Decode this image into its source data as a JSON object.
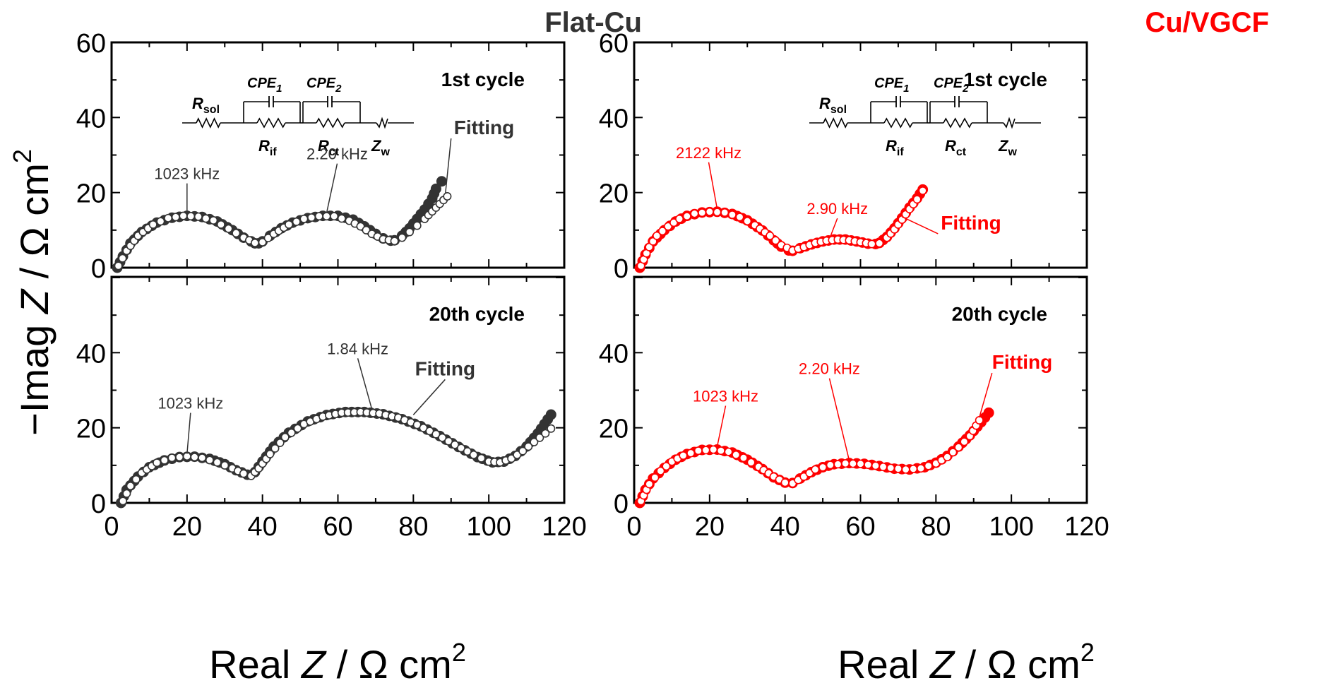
{
  "figure": {
    "ylabel_prefix": "−Imag ",
    "ylabel_var": "Z",
    "ylabel_unit": " / Ω cm",
    "ylabel_sup": "2",
    "xlabel_prefix": "Real ",
    "xlabel_var": "Z",
    "xlabel_unit": " / Ω cm",
    "xlabel_sup": "2",
    "panel_titles": [
      "Flat-Cu",
      "Cu/VGCF"
    ],
    "colors": {
      "flat": "#333333",
      "vgcf": "#ff0000",
      "axis": "#000000"
    }
  },
  "circuit": {
    "labels": [
      "R",
      "sol",
      "CPE",
      "1",
      "CPE",
      "2",
      "R",
      "if",
      "R",
      "ct",
      "Z",
      "w"
    ]
  },
  "chart_data": [
    {
      "type": "scatter",
      "panel": "Flat-Cu",
      "subtitle": "1st cycle",
      "xlim": [
        0,
        120
      ],
      "ylim": [
        0,
        60
      ],
      "xticks": [
        0,
        20,
        40,
        60,
        80,
        100,
        120
      ],
      "yticks": [
        0,
        20,
        40,
        60
      ],
      "color": "#333333",
      "series": [
        {
          "marker": "filled",
          "x": [
            1.5,
            3,
            5,
            8,
            12,
            16,
            20,
            24,
            28,
            32,
            35,
            37,
            38,
            39,
            40,
            42,
            45,
            48,
            52,
            56,
            60,
            64,
            67,
            70,
            72,
            74,
            75,
            77,
            79,
            81,
            83,
            85,
            86,
            87.5
          ],
          "y": [
            0,
            3,
            6.5,
            9.5,
            12,
            13.3,
            13.8,
            13.5,
            12.3,
            10,
            8,
            7,
            6.5,
            6.5,
            7,
            8.5,
            10.5,
            12,
            13.2,
            13.8,
            13.8,
            12.8,
            11,
            9,
            7.8,
            7.2,
            7.3,
            8.5,
            10.5,
            13,
            15.5,
            18.5,
            21,
            23
          ]
        },
        {
          "marker": "open",
          "x": [
            1.8,
            4,
            7,
            11,
            15,
            19,
            23,
            27,
            31,
            35,
            38,
            40,
            43,
            47,
            51,
            55,
            59,
            63,
            66,
            69,
            72,
            75,
            77,
            79,
            81,
            83,
            85,
            87,
            89
          ],
          "y": [
            0.5,
            4.5,
            8.5,
            11.5,
            13.2,
            13.8,
            13.6,
            12.6,
            10.4,
            8,
            6.6,
            6.8,
            9,
            11.5,
            13,
            13.7,
            13.7,
            12.5,
            11,
            9,
            7.6,
            7.1,
            8,
            9.5,
            11.2,
            13,
            15,
            17,
            19
          ]
        }
      ],
      "annotations": [
        {
          "text": "1023 kHz",
          "x": 20,
          "y": 13.8
        },
        {
          "text": "2.20 kHz",
          "x": 57,
          "y": 13.8
        },
        {
          "text": "Fitting",
          "x": 88.5,
          "y": 19
        }
      ]
    },
    {
      "type": "scatter",
      "panel": "Flat-Cu",
      "subtitle": "20th cycle",
      "xlim": [
        0,
        120
      ],
      "ylim": [
        0,
        60
      ],
      "xticks": [
        0,
        20,
        40,
        60,
        80,
        100,
        120
      ],
      "yticks": [
        0,
        20,
        40
      ],
      "color": "#333333",
      "series": [
        {
          "marker": "filled",
          "x": [
            2.5,
            4,
            7,
            10,
            14,
            18,
            22,
            26,
            30,
            33,
            36,
            38,
            40,
            43,
            47,
            52,
            57,
            62,
            67,
            72,
            77,
            82,
            87,
            92,
            97,
            101,
            104,
            107,
            110,
            113,
            116.5
          ],
          "y": [
            0,
            3.5,
            7,
            9.5,
            11.3,
            12.2,
            12.3,
            11.7,
            10.3,
            8.7,
            7.5,
            8.2,
            11,
            15,
            18.7,
            21.7,
            23.4,
            24.2,
            24.2,
            23.6,
            22.3,
            20.4,
            17.8,
            14.9,
            12.2,
            10.8,
            11,
            12.5,
            15,
            18.5,
            23.5
          ]
        },
        {
          "marker": "open",
          "x": [
            3,
            5,
            8,
            12,
            16,
            20,
            24,
            28,
            32,
            35,
            37,
            39,
            42,
            46,
            51,
            56,
            61,
            66,
            71,
            76,
            81,
            86,
            91,
            96,
            100,
            103,
            106,
            109,
            112,
            115,
            116.5
          ],
          "y": [
            0.5,
            4.5,
            8,
            10.7,
            12,
            12.4,
            12,
            10.8,
            9.2,
            7.8,
            7.2,
            9.2,
            13,
            17.5,
            21,
            23,
            24,
            24.2,
            23.8,
            22.7,
            20.8,
            18.3,
            15.5,
            12.8,
            11,
            10.8,
            11.8,
            13.8,
            16.2,
            18.5,
            19.8
          ]
        }
      ],
      "annotations": [
        {
          "text": "1023 kHz",
          "x": 20,
          "y": 12.3
        },
        {
          "text": "1.84 kHz",
          "x": 69,
          "y": 24.2
        },
        {
          "text": "Fitting",
          "x": 80,
          "y": 22.7
        }
      ]
    },
    {
      "type": "scatter",
      "panel": "Cu/VGCF",
      "subtitle": "1st cycle",
      "xlim": [
        0,
        120
      ],
      "ylim": [
        0,
        60
      ],
      "xticks": [
        0,
        20,
        40,
        60,
        80,
        100,
        120
      ],
      "yticks": [
        0,
        20,
        40,
        60
      ],
      "color": "#ff0000",
      "series": [
        {
          "marker": "filled",
          "x": [
            1.5,
            3,
            5,
            8,
            11,
            14,
            18,
            22,
            26,
            30,
            34,
            37,
            39,
            41,
            42,
            44,
            47,
            50,
            53,
            56,
            59,
            62,
            64,
            65,
            67,
            69,
            71,
            73,
            75,
            76.5
          ],
          "y": [
            0,
            3.5,
            7,
            10,
            12.3,
            13.8,
            14.7,
            14.9,
            14.3,
            12.6,
            9.9,
            7.3,
            5.6,
            4.6,
            4.5,
            5.2,
            6.2,
            7,
            7.5,
            7.5,
            7,
            6.4,
            6.3,
            6.6,
            8.2,
            10.5,
            13.2,
            16,
            18.5,
            20.8
          ]
        },
        {
          "marker": "open",
          "x": [
            1.8,
            4,
            6,
            9,
            12,
            16,
            20,
            24,
            28,
            32,
            36,
            39,
            42,
            45,
            48,
            51,
            54,
            57,
            60,
            63,
            65,
            67,
            69,
            71,
            73,
            75,
            76.5
          ],
          "y": [
            0.5,
            5.5,
            8.5,
            11,
            13,
            14.4,
            14.9,
            14.7,
            13.5,
            11.3,
            8.5,
            6,
            4.6,
            5.5,
            6.6,
            7.2,
            7.5,
            7.3,
            6.8,
            6.3,
            6.5,
            8,
            10.2,
            12.8,
            15.6,
            18.2,
            20.5
          ]
        }
      ],
      "annotations": [
        {
          "text": "2122 kHz",
          "x": 22,
          "y": 14.9
        },
        {
          "text": "2.90 kHz",
          "x": 52,
          "y": 7.5
        },
        {
          "text": "Fitting",
          "x": 71,
          "y": 12.8
        }
      ]
    },
    {
      "type": "scatter",
      "panel": "Cu/VGCF",
      "subtitle": "20th cycle",
      "xlim": [
        0,
        120
      ],
      "ylim": [
        0,
        60
      ],
      "xticks": [
        0,
        20,
        40,
        60,
        80,
        100,
        120
      ],
      "yticks": [
        0,
        20,
        40
      ],
      "color": "#ff0000",
      "series": [
        {
          "marker": "filled",
          "x": [
            1.5,
            3,
            5,
            8,
            11,
            14,
            18,
            22,
            26,
            30,
            34,
            37,
            40,
            42,
            44,
            47,
            50,
            53,
            57,
            61,
            65,
            69,
            73,
            77,
            80,
            83,
            86,
            89,
            92,
            94
          ],
          "y": [
            0,
            3.5,
            6.5,
            9.3,
            11.5,
            13,
            14.1,
            14.2,
            13.4,
            11.5,
            9,
            6.8,
            5.4,
            5.3,
            6.5,
            8.2,
            9.5,
            10.3,
            10.6,
            10.4,
            9.8,
            9.1,
            8.9,
            9.5,
            10.7,
            12.5,
            15,
            18,
            21.5,
            24
          ]
        },
        {
          "marker": "open",
          "x": [
            1.8,
            4,
            7,
            10,
            13,
            17,
            21,
            25,
            29,
            33,
            37,
            40,
            42,
            45,
            48,
            52,
            56,
            60,
            64,
            68,
            72,
            76,
            80,
            83,
            86,
            89,
            91.5
          ],
          "y": [
            0.5,
            5,
            8.5,
            11,
            12.6,
            13.9,
            14.2,
            13.6,
            12,
            9.6,
            7,
            5.4,
            5.2,
            7,
            8.9,
            10.1,
            10.5,
            10.4,
            9.9,
            9.3,
            8.9,
            9.2,
            10.5,
            12.2,
            14.8,
            17.8,
            22
          ]
        }
      ],
      "annotations": [
        {
          "text": "1023 kHz",
          "x": 22,
          "y": 14.2
        },
        {
          "text": "2.20 kHz",
          "x": 57,
          "y": 10.6
        },
        {
          "text": "Fitting",
          "x": 91.5,
          "y": 22
        }
      ]
    }
  ]
}
